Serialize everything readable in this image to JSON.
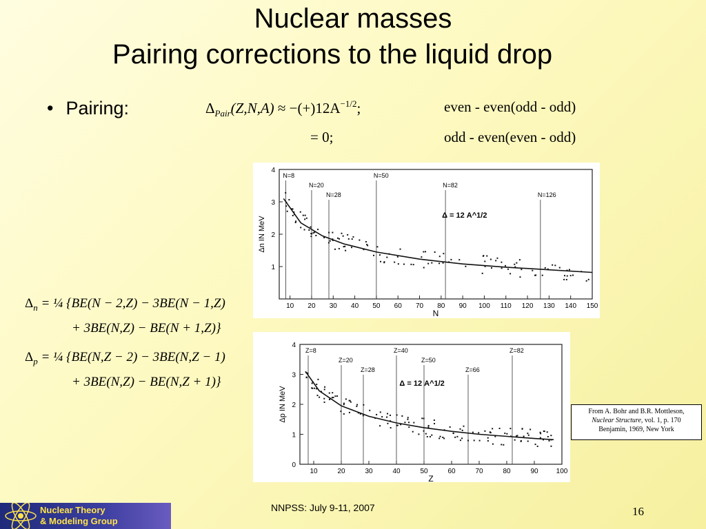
{
  "title": {
    "line1": "Nuclear masses",
    "line2": "Pairing corrections to the liquid drop"
  },
  "bullet": {
    "symbol": "•",
    "label": "Pairing:"
  },
  "pairing_eq": {
    "delta": "Δ",
    "sub": "Pair",
    "args": "(Z,N,A)",
    "approx": "≈ −(+)12A",
    "exp": "−1/2",
    "semi": ";",
    "case1": "even - even(odd - odd)",
    "line2": "= 0;",
    "case2": "odd - even(even - odd)"
  },
  "delta_n_eq": {
    "lhs": "Δ",
    "sub": "n",
    "line1": "= ¼ {BE(N − 2,Z) − 3BE(N − 1,Z)",
    "line2": "+ 3BE(N,Z) − BE(N + 1,Z)}"
  },
  "delta_p_eq": {
    "lhs": "Δ",
    "sub": "p",
    "line1": "= ¼ {BE(N,Z − 2) − 3BE(N,Z − 1)",
    "line2": "+ 3BE(N,Z) − BE(N,Z + 1)}"
  },
  "credit": {
    "line1": "From A. Bohr and B.R. Mottleson,",
    "line2a": "Nuclear Structure",
    "line2b": ", vol. 1, p. 170",
    "line3": "Benjamin, 1969, New York"
  },
  "footer": {
    "text": "NNPSS: July 9-11, 2007",
    "page": "16"
  },
  "logo": {
    "line1": "Nuclear Theory",
    "line2": "& Modeling Group"
  },
  "chart_data": [
    {
      "type": "scatter",
      "xlabel": "N",
      "ylabel": "Δn IN MeV",
      "xlim": [
        5,
        150
      ],
      "ylim": [
        0,
        4
      ],
      "xticks": [
        10,
        20,
        30,
        40,
        50,
        60,
        70,
        80,
        90,
        100,
        110,
        120,
        130,
        140,
        150
      ],
      "yticks": [
        1,
        2,
        3,
        4
      ],
      "curve_label": "Δ = 12 A^1/2",
      "magic_labels": [
        {
          "x": 8,
          "text": "N=8"
        },
        {
          "x": 20,
          "text": "N=20"
        },
        {
          "x": 28,
          "text": "N=28"
        },
        {
          "x": 50,
          "text": "N=50"
        },
        {
          "x": 82,
          "text": "N=82"
        },
        {
          "x": 126,
          "text": "N=126"
        }
      ],
      "curve": {
        "x": [
          7,
          15,
          25,
          35,
          50,
          70,
          90,
          110,
          130,
          150
        ],
        "y": [
          3.1,
          2.35,
          1.95,
          1.7,
          1.45,
          1.23,
          1.08,
          0.98,
          0.9,
          0.82
        ]
      }
    },
    {
      "type": "scatter",
      "xlabel": "Z",
      "ylabel": "Δp IN MeV",
      "xlim": [
        5,
        100
      ],
      "ylim": [
        0,
        4
      ],
      "xticks": [
        10,
        20,
        30,
        40,
        50,
        60,
        70,
        80,
        90,
        100
      ],
      "yticks": [
        0,
        1,
        2,
        3,
        4
      ],
      "curve_label": "Δ = 12 A^1/2",
      "magic_labels": [
        {
          "x": 8,
          "text": "Z=8"
        },
        {
          "x": 20,
          "text": "Z=20"
        },
        {
          "x": 28,
          "text": "Z=28"
        },
        {
          "x": 40,
          "text": "Z=40"
        },
        {
          "x": 50,
          "text": "Z=50"
        },
        {
          "x": 66,
          "text": "Z=66"
        },
        {
          "x": 82,
          "text": "Z=82"
        }
      ],
      "curve": {
        "x": [
          7,
          12,
          20,
          30,
          40,
          50,
          60,
          70,
          80,
          90,
          97
        ],
        "y": [
          3.1,
          2.45,
          1.95,
          1.6,
          1.38,
          1.22,
          1.1,
          1.0,
          0.93,
          0.86,
          0.82
        ]
      }
    }
  ]
}
